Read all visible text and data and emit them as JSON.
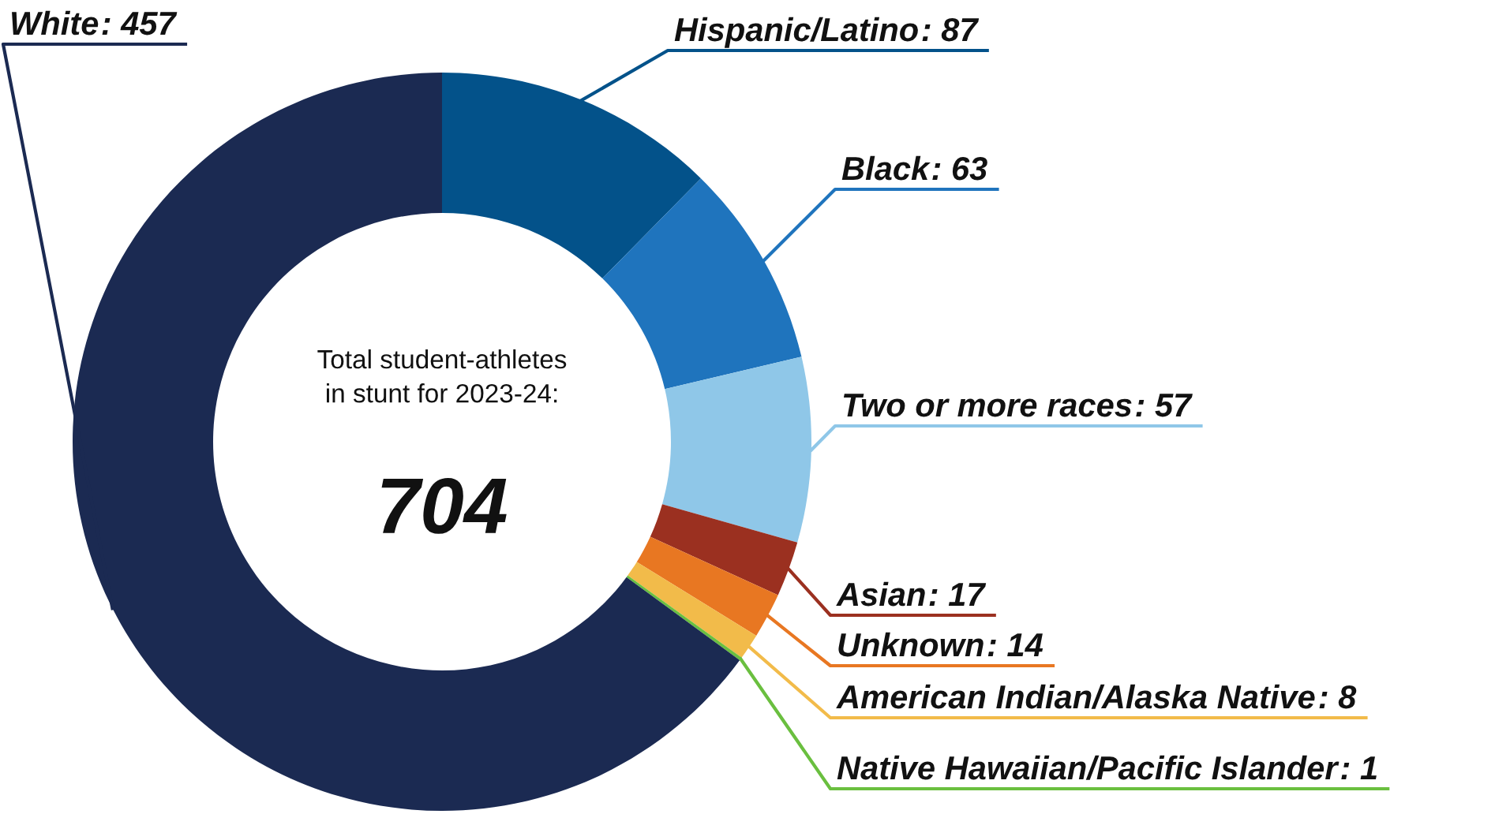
{
  "chart_data": {
    "type": "donut",
    "categories": [
      "Hispanic/Latino",
      "Black",
      "Two or more races",
      "Asian",
      "Unknown",
      "American Indian/Alaska Native",
      "Native Hawaiian/Pacific Islander",
      "White"
    ],
    "values": [
      87,
      63,
      57,
      17,
      14,
      8,
      1,
      457
    ],
    "colors": [
      "#03528a",
      "#1f74bd",
      "#8fc7e8",
      "#9b3020",
      "#e87722",
      "#f2bb4a",
      "#6abf3f",
      "#1b2a52"
    ],
    "value_labels": [
      ": 87",
      ": 63",
      ": 57",
      ": 17",
      ": 14",
      ": 8",
      ": 1",
      ": 457"
    ],
    "annotations": [
      "Total student-athletes\nin stunt for 2023-24:",
      "704"
    ]
  }
}
